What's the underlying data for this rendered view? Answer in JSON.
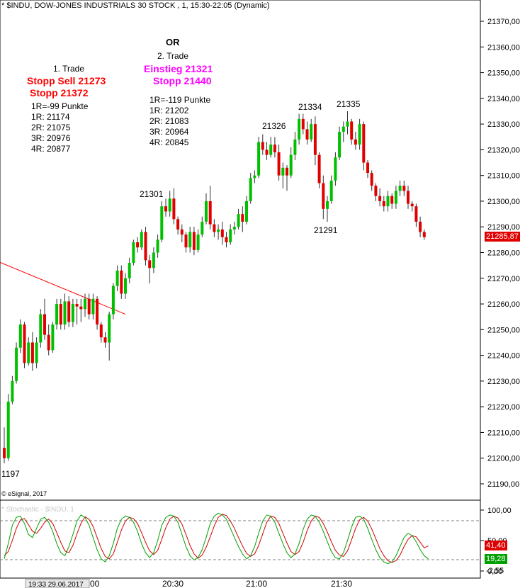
{
  "header": {
    "title": "* $INDU, DOW-JONES INDUSTRIALS 30 STOCK , 1, 15:30-22:05 (Dynamic)"
  },
  "annotations": {
    "or_label": "OR",
    "trade1": {
      "heading": "1. Trade",
      "entry": "Stopp Sell 21273",
      "stop": "Stopp 21372",
      "lines": [
        "1R=-99 Punkte",
        "1R: 21174",
        "2R: 21075",
        "3R: 20976",
        "4R: 20877"
      ]
    },
    "trade2": {
      "heading": "2. Trade",
      "entry": "Einstieg 21321",
      "stop": "Stopp 21440",
      "lines": [
        "1R=-119 Punkte",
        "1R: 21202",
        "2R: 21083",
        "3R: 20964",
        "4R: 20845"
      ]
    },
    "peaks": [
      "21334",
      "21335",
      "21326",
      "21301",
      "21291",
      "1197"
    ]
  },
  "copyright": "© eSignal, 2017",
  "oscillator": {
    "title": "* Stochastic - $INDU, 1",
    "k_value": "41,40",
    "d_value": "19,28",
    "extra_value": "-2,55",
    "top_label": "100,00",
    "mid_label": "50,00",
    "bottom_label": "0,00"
  },
  "current_price": "21285,87",
  "time_labels": [
    "19:33 29.06.2017",
    "00",
    "20:30",
    "21:00",
    "21:30"
  ],
  "chart_data": {
    "type": "candlestick",
    "title": "* $INDU, DOW-JONES INDUSTRIALS 30 STOCK , 1, 15:30-22:05 (Dynamic)",
    "ylim": [
      21183,
      21375
    ],
    "y_ticks": [
      "21190,00",
      "21200,00",
      "21210,00",
      "21220,00",
      "21230,00",
      "21240,00",
      "21250,00",
      "21260,00",
      "21270,00",
      "21280,00",
      "21290,00",
      "21300,00",
      "21310,00",
      "21320,00",
      "21330,00",
      "21340,00",
      "21350,00",
      "21360,00",
      "21370,00"
    ],
    "colors": {
      "up": "#00c000",
      "down": "#e00000",
      "trendline": "#ff0000",
      "k_line": "#00a000",
      "d_line": "#d00000"
    },
    "candles": [
      [
        21204,
        21212,
        21198,
        21200
      ],
      [
        21200,
        21225,
        21199,
        21222
      ],
      [
        21222,
        21232,
        21221,
        21230
      ],
      [
        21230,
        21245,
        21229,
        21243
      ],
      [
        21243,
        21254,
        21241,
        21252
      ],
      [
        21252,
        21253,
        21235,
        21237
      ],
      [
        21237,
        21247,
        21236,
        21245
      ],
      [
        21245,
        21249,
        21234,
        21237
      ],
      [
        21237,
        21247,
        21235,
        21245
      ],
      [
        21245,
        21258,
        21243,
        21256
      ],
      [
        21256,
        21262,
        21246,
        21248
      ],
      [
        21248,
        21252,
        21240,
        21242
      ],
      [
        21242,
        21253,
        21241,
        21252
      ],
      [
        21252,
        21262,
        21250,
        21260
      ],
      [
        21260,
        21262,
        21250,
        21252
      ],
      [
        21252,
        21264,
        21250,
        21261
      ],
      [
        21261,
        21263,
        21251,
        21253
      ],
      [
        21253,
        21262,
        21251,
        21260
      ],
      [
        21260,
        21262,
        21252,
        21259
      ],
      [
        21259,
        21262,
        21253,
        21258
      ],
      [
        21258,
        21264,
        21255,
        21262
      ],
      [
        21262,
        21264,
        21254,
        21256
      ],
      [
        21256,
        21264,
        21254,
        21262
      ],
      [
        21262,
        21263,
        21250,
        21252
      ],
      [
        21252,
        21253,
        21245,
        21247
      ],
      [
        21247,
        21249,
        21243,
        21245
      ],
      [
        21245,
        21257,
        21238,
        21256
      ],
      [
        21256,
        21268,
        21254,
        21267
      ],
      [
        21267,
        21275,
        21265,
        21273
      ],
      [
        21273,
        21275,
        21262,
        21264
      ],
      [
        21264,
        21272,
        21262,
        21270
      ],
      [
        21270,
        21278,
        21268,
        21276
      ],
      [
        21276,
        21285,
        21275,
        21284
      ],
      [
        21284,
        21286,
        21280,
        21282
      ],
      [
        21282,
        21289,
        21281,
        21288
      ],
      [
        21288,
        21290,
        21275,
        21277
      ],
      [
        21277,
        21279,
        21268,
        21274
      ],
      [
        21274,
        21282,
        21272,
        21280
      ],
      [
        21280,
        21287,
        21278,
        21285
      ],
      [
        21285,
        21300,
        21284,
        21298
      ],
      [
        21298,
        21301,
        21294,
        21296
      ],
      [
        21296,
        21304,
        21294,
        21301
      ],
      [
        21301,
        21305,
        21291,
        21293
      ],
      [
        21293,
        21294,
        21287,
        21289
      ],
      [
        21289,
        21291,
        21284,
        21287
      ],
      [
        21287,
        21288,
        21280,
        21282
      ],
      [
        21282,
        21290,
        21280,
        21288
      ],
      [
        21288,
        21290,
        21279,
        21281
      ],
      [
        21281,
        21289,
        21280,
        21287
      ],
      [
        21287,
        21294,
        21286,
        21292
      ],
      [
        21292,
        21303,
        21291,
        21300
      ],
      [
        21300,
        21306,
        21289,
        21291
      ],
      [
        21291,
        21293,
        21286,
        21288
      ],
      [
        21288,
        21291,
        21285,
        21289
      ],
      [
        21289,
        21292,
        21283,
        21286
      ],
      [
        21286,
        21288,
        21282,
        21284
      ],
      [
        21284,
        21291,
        21283,
        21289
      ],
      [
        21289,
        21292,
        21287,
        21290
      ],
      [
        21290,
        21297,
        21289,
        21295
      ],
      [
        21295,
        21298,
        21288,
        21292
      ],
      [
        21292,
        21302,
        21291,
        21300
      ],
      [
        21300,
        21311,
        21299,
        21309
      ],
      [
        21309,
        21312,
        21307,
        21310
      ],
      [
        21310,
        21325,
        21309,
        21323
      ],
      [
        21323,
        21326,
        21318,
        21320
      ],
      [
        21320,
        21323,
        21316,
        21318
      ],
      [
        21318,
        21325,
        21317,
        21322
      ],
      [
        21322,
        21325,
        21317,
        21319
      ],
      [
        21319,
        21322,
        21308,
        21310
      ],
      [
        21310,
        21315,
        21305,
        21313
      ],
      [
        21313,
        21314,
        21304,
        21310
      ],
      [
        21310,
        21321,
        21309,
        21318
      ],
      [
        21318,
        21327,
        21316,
        21324
      ],
      [
        21324,
        21334,
        21322,
        21332
      ],
      [
        21332,
        21334,
        21326,
        21328
      ],
      [
        21328,
        21331,
        21322,
        21324
      ],
      [
        21324,
        21332,
        21323,
        21330
      ],
      [
        21330,
        21333,
        21314,
        21318
      ],
      [
        21318,
        21319,
        21305,
        21307
      ],
      [
        21307,
        21310,
        21293,
        21297
      ],
      [
        21297,
        21302,
        21292,
        21300
      ],
      [
        21300,
        21310,
        21299,
        21308
      ],
      [
        21308,
        21319,
        21306,
        21317
      ],
      [
        21317,
        21329,
        21316,
        21327
      ],
      [
        21327,
        21331,
        21323,
        21329
      ],
      [
        21329,
        21335,
        21326,
        21331
      ],
      [
        21331,
        21332,
        21322,
        21324
      ],
      [
        21324,
        21327,
        21320,
        21322
      ],
      [
        21322,
        21332,
        21320,
        21330
      ],
      [
        21330,
        21331,
        21312,
        21315
      ],
      [
        21315,
        21316,
        21309,
        21311
      ],
      [
        21311,
        21312,
        21304,
        21306
      ],
      [
        21306,
        21307,
        21300,
        21302
      ],
      [
        21302,
        21305,
        21298,
        21300
      ],
      [
        21300,
        21302,
        21296,
        21298
      ],
      [
        21298,
        21304,
        21296,
        21302
      ],
      [
        21302,
        21303,
        21297,
        21299
      ],
      [
        21299,
        21306,
        21297,
        21304
      ],
      [
        21304,
        21308,
        21302,
        21306
      ],
      [
        21306,
        21308,
        21302,
        21304
      ],
      [
        21304,
        21306,
        21297,
        21299
      ],
      [
        21299,
        21300,
        21296,
        21298
      ],
      [
        21298,
        21299,
        21290,
        21292
      ],
      [
        21292,
        21294,
        21286,
        21288
      ],
      [
        21288,
        21289,
        21285,
        21286
      ]
    ],
    "trendline": {
      "from": [
        -10,
        21282
      ],
      "to": [
        30,
        21256
      ]
    },
    "stochastic": {
      "k": [
        20,
        45,
        75,
        88,
        90,
        78,
        60,
        55,
        70,
        85,
        88,
        80,
        65,
        45,
        30,
        25,
        40,
        60,
        82,
        92,
        88,
        75,
        55,
        35,
        20,
        15,
        25,
        45,
        70,
        85,
        90,
        88,
        80,
        65,
        45,
        30,
        22,
        30,
        50,
        75,
        88,
        92,
        90,
        80,
        60,
        40,
        25,
        18,
        22,
        35,
        55,
        78,
        90,
        95,
        92,
        85,
        70,
        55,
        40,
        28,
        20,
        25,
        40,
        62,
        82,
        92,
        90,
        80,
        62,
        45,
        30,
        22,
        28,
        45,
        68,
        85,
        92,
        90,
        80,
        65,
        48,
        32,
        22,
        20,
        30,
        50,
        72,
        88,
        90,
        85,
        70,
        52,
        35,
        22,
        15,
        12,
        15,
        25,
        40,
        55,
        62,
        58,
        48,
        35,
        25,
        20
      ],
      "d": [
        25,
        32,
        50,
        70,
        84,
        86,
        76,
        65,
        62,
        70,
        80,
        85,
        78,
        63,
        47,
        33,
        30,
        42,
        61,
        78,
        89,
        85,
        73,
        55,
        37,
        24,
        20,
        28,
        47,
        67,
        82,
        88,
        86,
        78,
        63,
        47,
        33,
        27,
        34,
        52,
        71,
        85,
        90,
        87,
        77,
        60,
        42,
        28,
        21,
        26,
        39,
        56,
        74,
        88,
        93,
        91,
        82,
        70,
        55,
        41,
        29,
        24,
        28,
        42,
        61,
        80,
        90,
        88,
        78,
        62,
        46,
        32,
        27,
        32,
        47,
        66,
        82,
        90,
        88,
        78,
        64,
        48,
        34,
        26,
        24,
        33,
        51,
        70,
        84,
        88,
        82,
        69,
        53,
        37,
        25,
        17,
        14,
        17,
        26,
        40,
        52,
        58,
        56,
        47,
        38,
        41
      ]
    }
  }
}
